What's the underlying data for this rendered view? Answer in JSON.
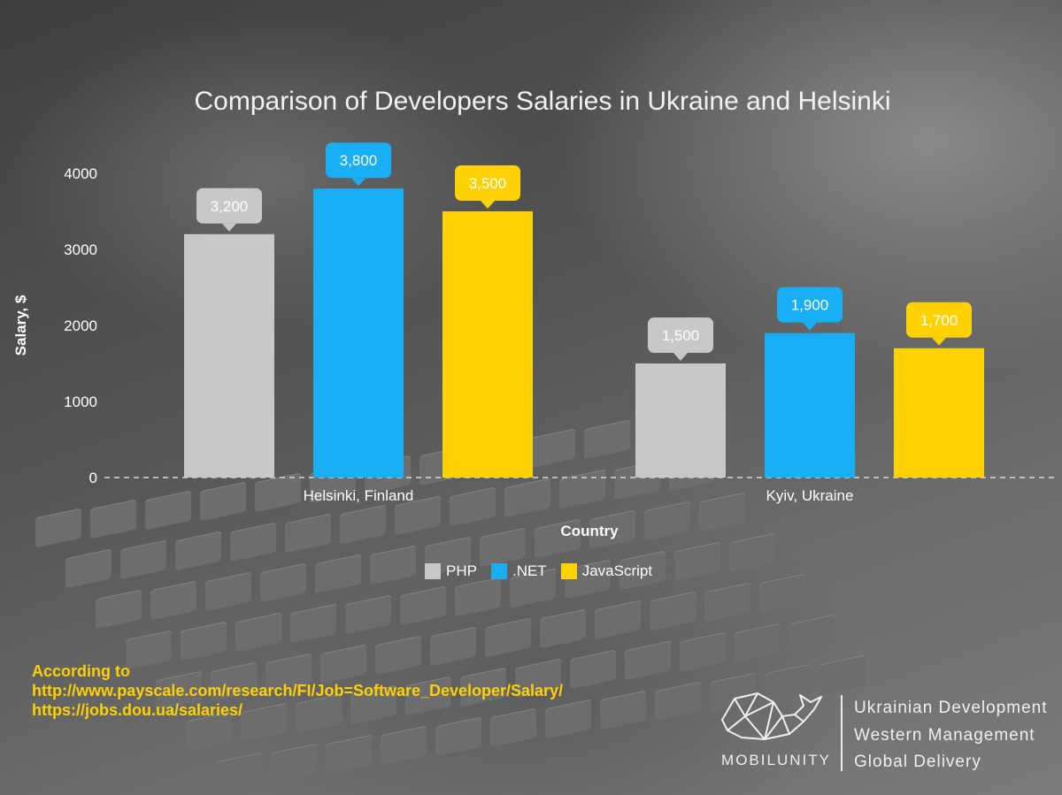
{
  "chart_data": {
    "type": "bar",
    "title": "Comparison of Developers Salaries in Ukraine and Helsinki",
    "xlabel": "Country",
    "ylabel": "Salary, $",
    "ylim": [
      0,
      4000
    ],
    "yticks": [
      0,
      1000,
      2000,
      3000,
      4000
    ],
    "categories": [
      "Helsinki, Finland",
      "Kyiv, Ukraine"
    ],
    "series": [
      {
        "name": "PHP",
        "values": [
          3200,
          1500
        ],
        "labels": [
          "3,200",
          "1,500"
        ],
        "color": "#c8c8c8"
      },
      {
        "name": ".NET",
        "values": [
          3800,
          1900
        ],
        "labels": [
          "3,800",
          "1,900"
        ],
        "color": "#1aaef5"
      },
      {
        "name": "JavaScript",
        "values": [
          3500,
          1700
        ],
        "labels": [
          "3,500",
          "1,700"
        ],
        "color": "#ffd200"
      }
    ],
    "grid": false,
    "legend_position": "bottom"
  },
  "source": {
    "heading": "According to",
    "links": [
      "http://www.payscale.com/research/FI/Job=Software_Developer/Salary/",
      "https://jobs.dou.ua/salaries/"
    ]
  },
  "brand": {
    "name": "MOBILUNITY",
    "tagline": [
      "Ukrainian Development",
      "Western Management",
      "Global Delivery"
    ]
  }
}
